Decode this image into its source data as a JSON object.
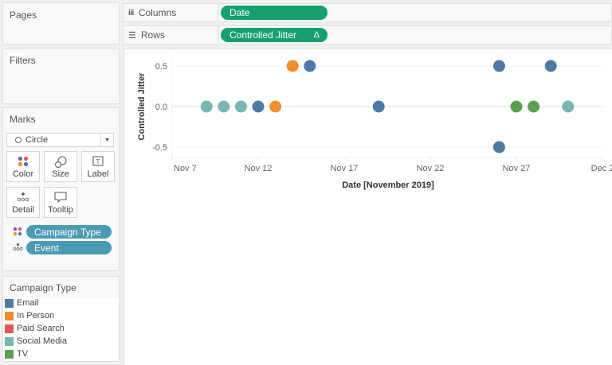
{
  "panels": {
    "pages": {
      "title": "Pages"
    },
    "filters": {
      "title": "Filters"
    },
    "marks": {
      "title": "Marks",
      "mark_type": "Circle",
      "buttons": [
        "Color",
        "Size",
        "Label",
        "Detail",
        "Tooltip"
      ],
      "fields": [
        {
          "label": "Campaign Type",
          "encoding": "color"
        },
        {
          "label": "Event",
          "encoding": "detail"
        }
      ]
    },
    "legend": {
      "title": "Campaign Type",
      "items": [
        {
          "label": "Email",
          "color": "#4e79a7"
        },
        {
          "label": "In Person",
          "color": "#f28e2b"
        },
        {
          "label": "Paid Search",
          "color": "#e15759"
        },
        {
          "label": "Social Media",
          "color": "#76b7b2"
        },
        {
          "label": "TV",
          "color": "#59a14f"
        }
      ]
    }
  },
  "shelves": {
    "columns": {
      "label": "Columns",
      "pill": "Date"
    },
    "rows": {
      "label": "Rows",
      "pill": "Controlled Jitter",
      "pill_icon": "Δ"
    }
  },
  "chart_data": {
    "type": "scatter",
    "title": "",
    "xlabel": "Date [November 2019]",
    "ylabel": "Controlled Jitter",
    "x_tick_labels": [
      "Nov 7",
      "Nov 12",
      "Nov 17",
      "Nov 22",
      "Nov 27",
      "Dec 2"
    ],
    "y_tick_labels": [
      "0.5",
      "0.0",
      "-0.5"
    ],
    "ylim": [
      -0.62,
      0.62
    ],
    "x_range": [
      "Nov 7",
      "Dec 2"
    ],
    "grid": true,
    "points": [
      {
        "date": "Nov 9",
        "day": 9,
        "y": 0.0,
        "campaign_type": "Social Media"
      },
      {
        "date": "Nov 10",
        "day": 10,
        "y": 0.0,
        "campaign_type": "Social Media"
      },
      {
        "date": "Nov 11",
        "day": 11,
        "y": 0.0,
        "campaign_type": "Social Media"
      },
      {
        "date": "Nov 12",
        "day": 12,
        "y": 0.0,
        "campaign_type": "Email"
      },
      {
        "date": "Nov 13",
        "day": 13,
        "y": 0.0,
        "campaign_type": "In Person"
      },
      {
        "date": "Nov 14",
        "day": 14,
        "y": 0.5,
        "campaign_type": "In Person"
      },
      {
        "date": "Nov 15",
        "day": 15,
        "y": 0.5,
        "campaign_type": "Email"
      },
      {
        "date": "Nov 19",
        "day": 19,
        "y": 0.0,
        "campaign_type": "Email"
      },
      {
        "date": "Nov 26",
        "day": 26,
        "y": 0.5,
        "campaign_type": "Email"
      },
      {
        "date": "Nov 26",
        "day": 26,
        "y": -0.5,
        "campaign_type": "Email"
      },
      {
        "date": "Nov 27",
        "day": 27,
        "y": 0.0,
        "campaign_type": "TV"
      },
      {
        "date": "Nov 28",
        "day": 28,
        "y": 0.0,
        "campaign_type": "TV"
      },
      {
        "date": "Nov 29",
        "day": 29,
        "y": 0.5,
        "campaign_type": "Email"
      },
      {
        "date": "Nov 30",
        "day": 30,
        "y": 0.0,
        "campaign_type": "Social Media"
      }
    ]
  }
}
